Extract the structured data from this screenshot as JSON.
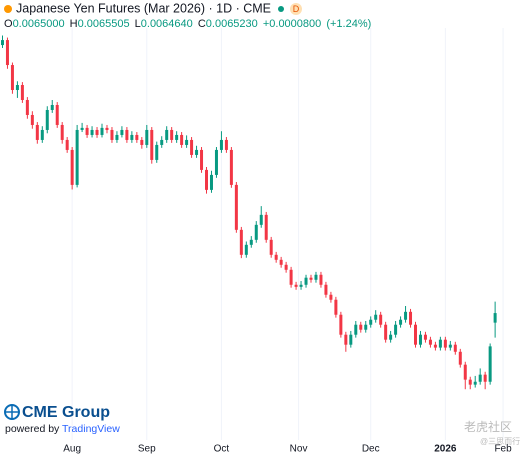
{
  "chart_data": {
    "type": "candlestick",
    "title": "Japanese Yen Futures (Mar 2026) · 1D · CME",
    "interval_badge": "D",
    "header": {
      "labels": [
        "O",
        "H",
        "L",
        "C"
      ],
      "value_labels": [
        "0.0065000",
        "0.0065505",
        "0.0064640",
        "0.0065230"
      ],
      "change_label": "+0.0000800",
      "change_pct_label": "(+1.24%)"
    },
    "up_color": "#089981",
    "down_color": "#f23645",
    "ylim": [
      0.006218,
      0.007208
    ],
    "xlim": [
      -0.5,
      104
    ],
    "xticks": [
      {
        "value": 14,
        "label": "Aug"
      },
      {
        "value": 29,
        "label": "Sep"
      },
      {
        "value": 44,
        "label": "Oct"
      },
      {
        "value": 59.5,
        "label": "Nov"
      },
      {
        "value": 74,
        "label": "Dec"
      },
      {
        "value": 89,
        "label": "2026"
      },
      {
        "value": 100.6,
        "label": "Feb"
      }
    ],
    "grid": true,
    "logo": "CME Group",
    "powered_by": "powered by",
    "powered_brand": "TradingView",
    "watermark": "老虎社区",
    "watermark_user": "@三思而行",
    "candles": [
      [
        0.007167,
        0.00719,
        0.00716,
        0.007179
      ],
      [
        0.007179,
        0.007185,
        0.00711,
        0.007119
      ],
      [
        0.007119,
        0.007125,
        0.00705,
        0.007059
      ],
      [
        0.007059,
        0.00708,
        0.00704,
        0.007071
      ],
      [
        0.007071,
        0.007078,
        0.007028,
        0.007035
      ],
      [
        0.007035,
        0.007042,
        0.00699,
        0.006999
      ],
      [
        0.006999,
        0.007008,
        0.006966,
        0.006975
      ],
      [
        0.006975,
        0.006982,
        0.00693,
        0.006939
      ],
      [
        0.006939,
        0.006972,
        0.006932,
        0.006963
      ],
      [
        0.006963,
        0.00702,
        0.006955,
        0.007011
      ],
      [
        0.007011,
        0.007035,
        0.007004,
        0.007023
      ],
      [
        0.007023,
        0.00703,
        0.006968,
        0.006975
      ],
      [
        0.006975,
        0.006982,
        0.00693,
        0.006939
      ],
      [
        0.006939,
        0.006946,
        0.006908,
        0.006915
      ],
      [
        0.006915,
        0.006922,
        0.00682,
        0.006831
      ],
      [
        0.006831,
        0.006975,
        0.006825,
        0.006963
      ],
      [
        0.006963,
        0.00698,
        0.006958,
        0.006968
      ],
      [
        0.006968,
        0.006975,
        0.006944,
        0.006951
      ],
      [
        0.006951,
        0.006972,
        0.006945,
        0.006963
      ],
      [
        0.006963,
        0.00697,
        0.006944,
        0.006951
      ],
      [
        0.006951,
        0.006978,
        0.006945,
        0.006968
      ],
      [
        0.006968,
        0.006975,
        0.006955,
        0.006963
      ],
      [
        0.006963,
        0.00697,
        0.006932,
        0.006939
      ],
      [
        0.006939,
        0.00696,
        0.006932,
        0.006951
      ],
      [
        0.006951,
        0.006972,
        0.006945,
        0.006963
      ],
      [
        0.006963,
        0.00697,
        0.006932,
        0.006939
      ],
      [
        0.006939,
        0.00696,
        0.006932,
        0.006951
      ],
      [
        0.006951,
        0.006958,
        0.006932,
        0.006939
      ],
      [
        0.006939,
        0.006946,
        0.006918,
        0.006927
      ],
      [
        0.006927,
        0.006975,
        0.00692,
        0.006963
      ],
      [
        0.006963,
        0.00697,
        0.006882,
        0.006891
      ],
      [
        0.006891,
        0.006935,
        0.006884,
        0.006927
      ],
      [
        0.006927,
        0.006948,
        0.00692,
        0.006939
      ],
      [
        0.006939,
        0.006972,
        0.006932,
        0.006963
      ],
      [
        0.006963,
        0.00697,
        0.006932,
        0.006939
      ],
      [
        0.006939,
        0.00696,
        0.006932,
        0.006951
      ],
      [
        0.006951,
        0.006958,
        0.00692,
        0.006927
      ],
      [
        0.006927,
        0.00695,
        0.00692,
        0.006939
      ],
      [
        0.006939,
        0.006946,
        0.006896,
        0.006903
      ],
      [
        0.006903,
        0.006925,
        0.006896,
        0.006915
      ],
      [
        0.006915,
        0.006922,
        0.00686,
        0.006867
      ],
      [
        0.006867,
        0.006874,
        0.00681,
        0.006819
      ],
      [
        0.006819,
        0.006865,
        0.006812,
        0.006855
      ],
      [
        0.006855,
        0.006922,
        0.006848,
        0.006915
      ],
      [
        0.006915,
        0.00696,
        0.006908,
        0.006939
      ],
      [
        0.006939,
        0.006946,
        0.006908,
        0.006915
      ],
      [
        0.006915,
        0.006922,
        0.006824,
        0.006831
      ],
      [
        0.006831,
        0.006838,
        0.006716,
        0.006723
      ],
      [
        0.006723,
        0.00673,
        0.006655,
        0.006663
      ],
      [
        0.006663,
        0.006695,
        0.006656,
        0.006687
      ],
      [
        0.006687,
        0.006708,
        0.00668,
        0.006699
      ],
      [
        0.006699,
        0.006744,
        0.006692,
        0.006735
      ],
      [
        0.006735,
        0.00678,
        0.006728,
        0.006759
      ],
      [
        0.006759,
        0.006766,
        0.006692,
        0.006699
      ],
      [
        0.006699,
        0.006706,
        0.006656,
        0.006663
      ],
      [
        0.006663,
        0.00667,
        0.006644,
        0.006651
      ],
      [
        0.006651,
        0.006658,
        0.006632,
        0.006639
      ],
      [
        0.006639,
        0.006646,
        0.00662,
        0.006627
      ],
      [
        0.006627,
        0.006634,
        0.006584,
        0.006591
      ],
      [
        0.006591,
        0.006598,
        0.006579,
        0.006586
      ],
      [
        0.006586,
        0.0066,
        0.006579,
        0.006591
      ],
      [
        0.006591,
        0.006615,
        0.006584,
        0.006608
      ],
      [
        0.006608,
        0.006615,
        0.006596,
        0.006603
      ],
      [
        0.006603,
        0.006622,
        0.006596,
        0.006615
      ],
      [
        0.006615,
        0.006622,
        0.006584,
        0.006591
      ],
      [
        0.006591,
        0.006598,
        0.00656,
        0.006567
      ],
      [
        0.006567,
        0.006574,
        0.006548,
        0.006555
      ],
      [
        0.006555,
        0.006562,
        0.006512,
        0.006519
      ],
      [
        0.006519,
        0.006526,
        0.006464,
        0.006471
      ],
      [
        0.006471,
        0.006478,
        0.00643,
        0.006447
      ],
      [
        0.006447,
        0.00648,
        0.00644,
        0.006471
      ],
      [
        0.006471,
        0.006504,
        0.006464,
        0.006495
      ],
      [
        0.006495,
        0.006502,
        0.006476,
        0.006483
      ],
      [
        0.006483,
        0.006504,
        0.006476,
        0.006495
      ],
      [
        0.006495,
        0.006515,
        0.006488,
        0.006507
      ],
      [
        0.006507,
        0.00653,
        0.0065,
        0.006519
      ],
      [
        0.006519,
        0.006526,
        0.006488,
        0.006495
      ],
      [
        0.006495,
        0.006502,
        0.006452,
        0.006459
      ],
      [
        0.006459,
        0.00648,
        0.006452,
        0.006471
      ],
      [
        0.006471,
        0.006504,
        0.006464,
        0.006495
      ],
      [
        0.006495,
        0.006515,
        0.006488,
        0.006507
      ],
      [
        0.006507,
        0.00654,
        0.0065,
        0.006526
      ],
      [
        0.006526,
        0.006533,
        0.006488,
        0.006495
      ],
      [
        0.006495,
        0.006502,
        0.00644,
        0.006447
      ],
      [
        0.006447,
        0.00648,
        0.00644,
        0.006471
      ],
      [
        0.006471,
        0.006478,
        0.006452,
        0.006459
      ],
      [
        0.006459,
        0.006466,
        0.00644,
        0.006447
      ],
      [
        0.006447,
        0.006454,
        0.006433,
        0.00644
      ],
      [
        0.00644,
        0.006466,
        0.006433,
        0.006459
      ],
      [
        0.006459,
        0.006466,
        0.006433,
        0.00644
      ],
      [
        0.00644,
        0.006456,
        0.006433,
        0.006447
      ],
      [
        0.006447,
        0.006454,
        0.006423,
        0.00643
      ],
      [
        0.00643,
        0.006437,
        0.006392,
        0.006399
      ],
      [
        0.006399,
        0.006406,
        0.00634,
        0.006363
      ],
      [
        0.006363,
        0.00637,
        0.00634,
        0.006351
      ],
      [
        0.006351,
        0.006372,
        0.006344,
        0.006358
      ],
      [
        0.006358,
        0.00639,
        0.006351,
        0.006375
      ],
      [
        0.006375,
        0.006382,
        0.00634,
        0.006358
      ],
      [
        0.006358,
        0.00645,
        0.006351,
        0.006443
      ],
      [
        0.0065,
        0.0065505,
        0.006464,
        0.006523
      ]
    ]
  }
}
